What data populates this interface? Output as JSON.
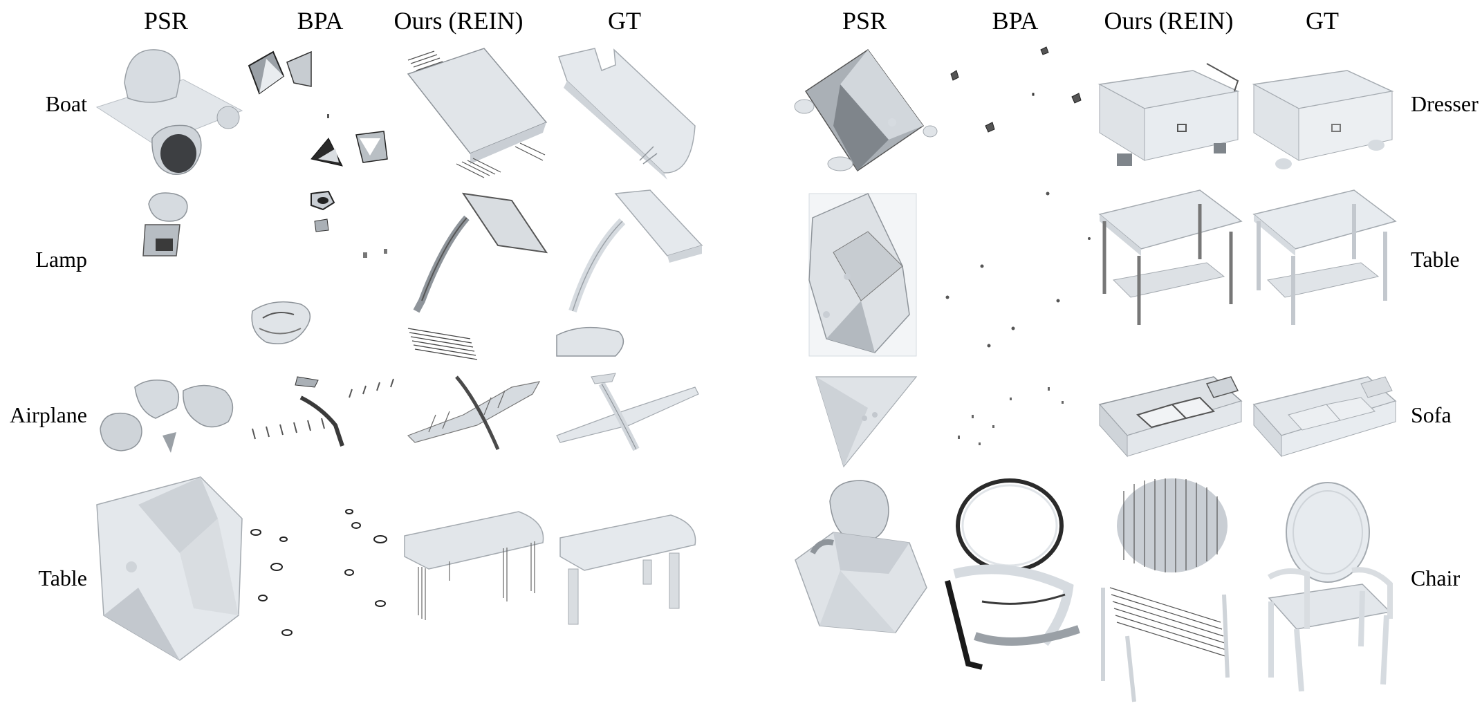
{
  "left_panel": {
    "columns": [
      "PSR",
      "BPA",
      "Ours (REIN)",
      "GT"
    ],
    "rows": [
      "Boat",
      "Lamp",
      "Airplane",
      "Table"
    ]
  },
  "right_panel": {
    "columns": [
      "PSR",
      "BPA",
      "Ours (REIN)",
      "GT"
    ],
    "rows": [
      "Dresser",
      "Table",
      "Sofa",
      "Chair"
    ]
  },
  "colors": {
    "surface_light": "#e4e8ec",
    "surface_mid": "#c9ced4",
    "surface_dark": "#8e949a",
    "edge_dark": "#3a3a3a"
  }
}
